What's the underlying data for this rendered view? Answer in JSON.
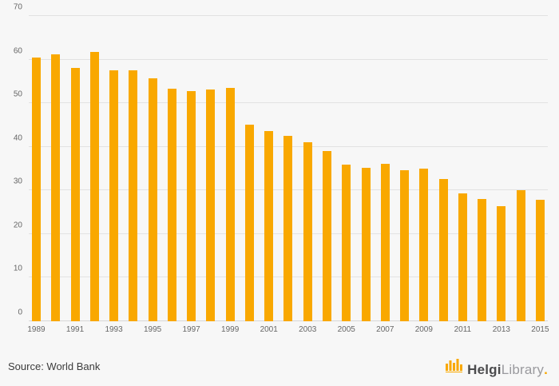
{
  "colors": {
    "background": "#F7F7F7",
    "bar": "#F9A800",
    "gridline": "#E2E2E2",
    "tick_text": "#666666",
    "brand_gold": "#F9A800"
  },
  "footer": {
    "source": "Source: World Bank",
    "logo": {
      "brand_primary": "Helgi",
      "brand_secondary": "Library",
      "brand_dot": "."
    }
  },
  "chart_data": {
    "type": "bar",
    "title": "",
    "xlabel": "",
    "ylabel": "",
    "categories": [
      1989,
      1990,
      1991,
      1992,
      1993,
      1994,
      1995,
      1996,
      1997,
      1998,
      1999,
      2000,
      2001,
      2002,
      2003,
      2004,
      2005,
      2006,
      2007,
      2008,
      2009,
      2010,
      2011,
      2012,
      2013,
      2014,
      2015
    ],
    "values": [
      60.5,
      61.2,
      58.1,
      61.8,
      57.5,
      57.5,
      55.8,
      53.3,
      52.7,
      53.2,
      53.6,
      45.1,
      43.7,
      42.6,
      41.0,
      39.0,
      36.0,
      35.2,
      36.1,
      34.7,
      35.0,
      32.7,
      29.4,
      28.1,
      26.4,
      30.0,
      27.9
    ],
    "ylim": [
      0,
      70
    ],
    "yticks": [
      0,
      10,
      20,
      30,
      40,
      50,
      60,
      70
    ],
    "xtick_labels_shown": [
      "1989",
      "1991",
      "1993",
      "1995",
      "1997",
      "1999",
      "2001",
      "2003",
      "2005",
      "2007",
      "2009",
      "2011",
      "2013",
      "2015"
    ],
    "x_label_every": 2,
    "grid": true,
    "legend": false
  }
}
